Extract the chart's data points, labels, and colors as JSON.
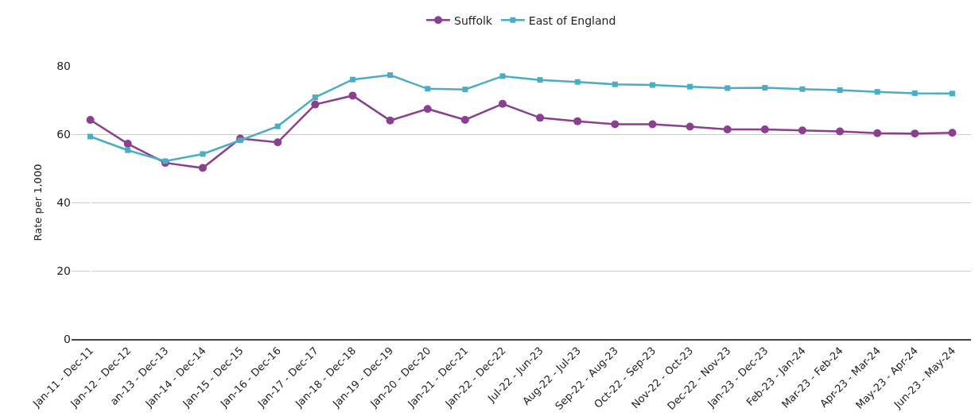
{
  "chart_data": {
    "type": "line",
    "ylabel": "Rate per 1,000",
    "categories": [
      "Jan-11 - Dec-11",
      "Jan-12 - Dec-12",
      "an-13 - Dec-13",
      "Jan-14 - Dec-14",
      "Jan-15 - Dec-15",
      "Jan-16 - Dec-16",
      "Jan-17 - Dec-17",
      "Jan-18 - Dec-18",
      "Jan-19 - Dec-19",
      "Jan-20 - Dec-20",
      "Jan-21 - Dec-21",
      "Jan-22 - Dec-22",
      "Jul-22 - Jun-23",
      "Aug-22 - Jul-23",
      "Sep-22 - Aug-23",
      "Oct-22 - Sep-23",
      "Nov-22 - Oct-23",
      "Dec-22 - Nov-23",
      "Jan-23 - Dec-23",
      "Feb-23 - Jan-24",
      "Mar-23 - Feb-24",
      "Apr-23 - Mar-24",
      "May-23 - Apr-24",
      "Jun-23 - May-24"
    ],
    "series": [
      {
        "name": "Suffolk",
        "color": "#8b3f8f",
        "marker": "circle",
        "values": [
          64.2,
          57.2,
          51.6,
          50.1,
          58.7,
          57.6,
          68.7,
          71.3,
          64.0,
          67.4,
          64.2,
          68.9,
          64.8,
          63.8,
          62.9,
          62.9,
          62.2,
          61.4,
          61.4,
          61.1,
          60.8,
          60.3,
          60.2,
          60.4
        ]
      },
      {
        "name": "East of England",
        "color": "#4bacc6",
        "marker": "square",
        "values": [
          59.3,
          55.3,
          52.1,
          54.2,
          58.2,
          62.3,
          70.8,
          76.0,
          77.3,
          73.3,
          73.1,
          77.0,
          75.9,
          75.3,
          74.6,
          74.4,
          73.9,
          73.5,
          73.6,
          73.2,
          72.9,
          72.4,
          72.0,
          71.9
        ]
      }
    ],
    "ylim": [
      0,
      80
    ],
    "yticks": [
      0,
      20,
      40,
      60,
      80
    ],
    "grid": "y",
    "legend": "top",
    "line_style": "solid"
  }
}
